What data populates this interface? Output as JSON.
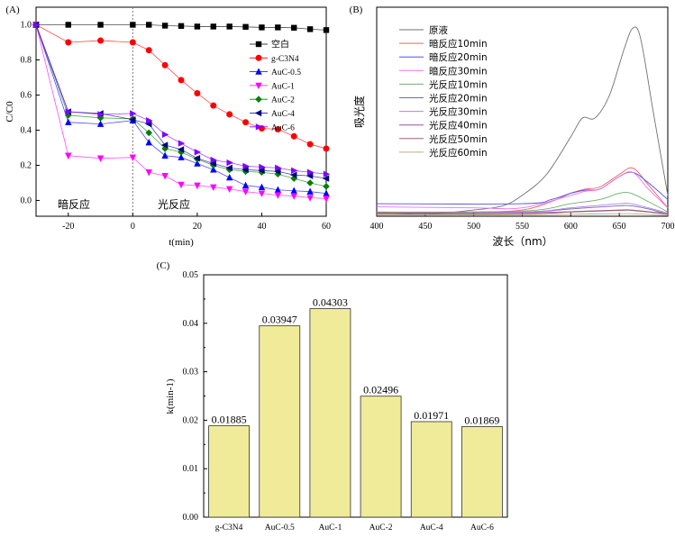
{
  "chart_data": [
    {
      "panel": "(A)",
      "type": "line",
      "xlabel": "t(min)",
      "ylabel": "C/C0",
      "xlim": [
        -30,
        60
      ],
      "ylim": [
        -0.09,
        1.1
      ],
      "xticks": [
        -20,
        0,
        20,
        40,
        60
      ],
      "yticks": [
        "0.0",
        "0.2",
        "0.4",
        "0.6",
        "0.8",
        "1.0"
      ],
      "annotations": [
        "暗反应",
        "光反应"
      ],
      "divider_x": 0,
      "legend_position": "top-right",
      "x": [
        -30,
        -20,
        -10,
        0,
        5,
        10,
        15,
        20,
        25,
        30,
        35,
        40,
        45,
        50,
        55,
        60
      ],
      "series": [
        {
          "name": "空白",
          "color": "#000000",
          "marker": "square",
          "values": [
            1,
            1,
            1,
            1,
            1,
            0.995,
            0.993,
            0.99,
            0.99,
            0.99,
            0.988,
            0.985,
            0.985,
            0.983,
            0.975,
            0.97
          ]
        },
        {
          "name": "g-C3N4",
          "color": "#ff0000",
          "marker": "circle",
          "values": [
            1,
            0.9,
            0.91,
            0.9,
            0.855,
            0.77,
            0.685,
            0.61,
            0.54,
            0.49,
            0.445,
            0.41,
            0.405,
            0.365,
            0.32,
            0.295
          ]
        },
        {
          "name": "AuC-0.5",
          "color": "#0000ff",
          "marker": "triangle-up",
          "values": [
            1,
            0.445,
            0.435,
            0.455,
            0.33,
            0.255,
            0.245,
            0.21,
            0.175,
            0.13,
            0.085,
            0.075,
            0.06,
            0.055,
            0.05,
            0.04
          ]
        },
        {
          "name": "AuC-1",
          "color": "#ff00ff",
          "marker": "triangle-down",
          "values": [
            1,
            0.255,
            0.24,
            0.245,
            0.16,
            0.14,
            0.09,
            0.085,
            0.075,
            0.065,
            0.05,
            0.04,
            0.03,
            0.025,
            0.015,
            0.01
          ]
        },
        {
          "name": "AuC-2",
          "color": "#008000",
          "marker": "diamond",
          "values": [
            1,
            0.485,
            0.47,
            0.465,
            0.385,
            0.295,
            0.275,
            0.235,
            0.2,
            0.175,
            0.165,
            0.16,
            0.15,
            0.125,
            0.1,
            0.08
          ]
        },
        {
          "name": "AuC-4",
          "color": "#000080",
          "marker": "triangle-left",
          "values": [
            1,
            0.505,
            0.495,
            0.46,
            0.435,
            0.315,
            0.29,
            0.24,
            0.21,
            0.185,
            0.175,
            0.17,
            0.165,
            0.145,
            0.14,
            0.125
          ]
        },
        {
          "name": "AuC-6",
          "color": "#8000ff",
          "marker": "triangle-right",
          "values": [
            1,
            0.505,
            0.49,
            0.495,
            0.455,
            0.375,
            0.325,
            0.275,
            0.23,
            0.215,
            0.195,
            0.19,
            0.185,
            0.17,
            0.16,
            0.15
          ]
        }
      ]
    },
    {
      "panel": "(B)",
      "type": "line",
      "xlabel": "波长（nm）",
      "ylabel": "吸光度",
      "xlim": [
        400,
        700
      ],
      "ylim": [
        0,
        1
      ],
      "xticks": [
        400,
        450,
        500,
        550,
        600,
        650,
        700
      ],
      "legend_position": "top-left",
      "series": [
        {
          "name": "原液",
          "color": "#707070",
          "points": [
            [
              400,
              0.02
            ],
            [
              450,
              0.01
            ],
            [
              500,
              0.03
            ],
            [
              530,
              0.05
            ],
            [
              550,
              0.1
            ],
            [
              575,
              0.2
            ],
            [
              600,
              0.38
            ],
            [
              612,
              0.47
            ],
            [
              625,
              0.47
            ],
            [
              640,
              0.58
            ],
            [
              655,
              0.8
            ],
            [
              664,
              0.9
            ],
            [
              672,
              0.85
            ],
            [
              685,
              0.5
            ],
            [
              700,
              0.1
            ]
          ]
        },
        {
          "name": "暗反应10min",
          "color": "#f06060",
          "points": [
            [
              400,
              0.02
            ],
            [
              500,
              0.02
            ],
            [
              550,
              0.03
            ],
            [
              580,
              0.07
            ],
            [
              600,
              0.11
            ],
            [
              615,
              0.13
            ],
            [
              630,
              0.14
            ],
            [
              650,
              0.2
            ],
            [
              664,
              0.23
            ],
            [
              680,
              0.15
            ],
            [
              700,
              0.04
            ]
          ]
        },
        {
          "name": "暗反应20min",
          "color": "#5050f0",
          "points": [
            [
              400,
              0.06
            ],
            [
              550,
              0.06
            ],
            [
              580,
              0.08
            ],
            [
              600,
              0.11
            ],
            [
              615,
              0.125
            ],
            [
              630,
              0.13
            ],
            [
              650,
              0.19
            ],
            [
              664,
              0.21
            ],
            [
              680,
              0.16
            ],
            [
              700,
              0.08
            ]
          ]
        },
        {
          "name": "暗反应30min",
          "color": "#f070f0",
          "points": [
            [
              400,
              0.045
            ],
            [
              500,
              0.04
            ],
            [
              550,
              0.04
            ],
            [
              600,
              0.1
            ],
            [
              615,
              0.12
            ],
            [
              630,
              0.13
            ],
            [
              650,
              0.19
            ],
            [
              664,
              0.21
            ],
            [
              680,
              0.13
            ],
            [
              700,
              0.04
            ]
          ]
        },
        {
          "name": "光反应10min",
          "color": "#70b070",
          "points": [
            [
              400,
              0.02
            ],
            [
              550,
              0.025
            ],
            [
              600,
              0.06
            ],
            [
              630,
              0.08
            ],
            [
              650,
              0.11
            ],
            [
              662,
              0.11
            ],
            [
              680,
              0.07
            ],
            [
              700,
              0.02
            ]
          ]
        },
        {
          "name": "光反应20min",
          "color": "#7070a0",
          "points": [
            [
              400,
              0.015
            ],
            [
              550,
              0.02
            ],
            [
              600,
              0.035
            ],
            [
              650,
              0.05
            ],
            [
              662,
              0.05
            ],
            [
              680,
              0.035
            ],
            [
              700,
              0.01
            ]
          ]
        },
        {
          "name": "光反应30min",
          "color": "#b080f0",
          "points": [
            [
              400,
              0.015
            ],
            [
              550,
              0.02
            ],
            [
              600,
              0.04
            ],
            [
              650,
              0.06
            ],
            [
              662,
              0.06
            ],
            [
              680,
              0.04
            ],
            [
              700,
              0.015
            ]
          ]
        },
        {
          "name": "光反应40min",
          "color": "#a050a0",
          "points": [
            [
              400,
              0.015
            ],
            [
              550,
              0.017
            ],
            [
              600,
              0.022
            ],
            [
              650,
              0.03
            ],
            [
              662,
              0.03
            ],
            [
              680,
              0.022
            ],
            [
              700,
              0.012
            ]
          ]
        },
        {
          "name": "光反应50min",
          "color": "#a06070",
          "points": [
            [
              400,
              0.01
            ],
            [
              550,
              0.012
            ],
            [
              600,
              0.02
            ],
            [
              650,
              0.028
            ],
            [
              662,
              0.028
            ],
            [
              680,
              0.02
            ],
            [
              700,
              0.01
            ]
          ]
        },
        {
          "name": "光反应60min",
          "color": "#b0b080",
          "points": [
            [
              400,
              0.005
            ],
            [
              550,
              0.007
            ],
            [
              600,
              0.01
            ],
            [
              650,
              0.012
            ],
            [
              662,
              0.012
            ],
            [
              680,
              0.009
            ],
            [
              700,
              0.004
            ]
          ]
        }
      ]
    },
    {
      "panel": "(C)",
      "type": "bar",
      "ylabel": "k(min-1)",
      "ylim": [
        0,
        0.05
      ],
      "yticks": [
        "0.00",
        "0.01",
        "0.02",
        "0.03",
        "0.04",
        "0.05"
      ],
      "bar_color": "#f0eb98",
      "categories": [
        "g-C3N4",
        "AuC-0.5",
        "AuC-1",
        "AuC-2",
        "AuC-4",
        "AuC-6"
      ],
      "values": [
        0.01885,
        0.03947,
        0.04303,
        0.02496,
        0.01971,
        0.01869
      ],
      "data_labels": [
        "0.01885",
        "0.03947",
        "0.04303",
        "0.02496",
        "0.01971",
        "0.01869"
      ]
    }
  ]
}
